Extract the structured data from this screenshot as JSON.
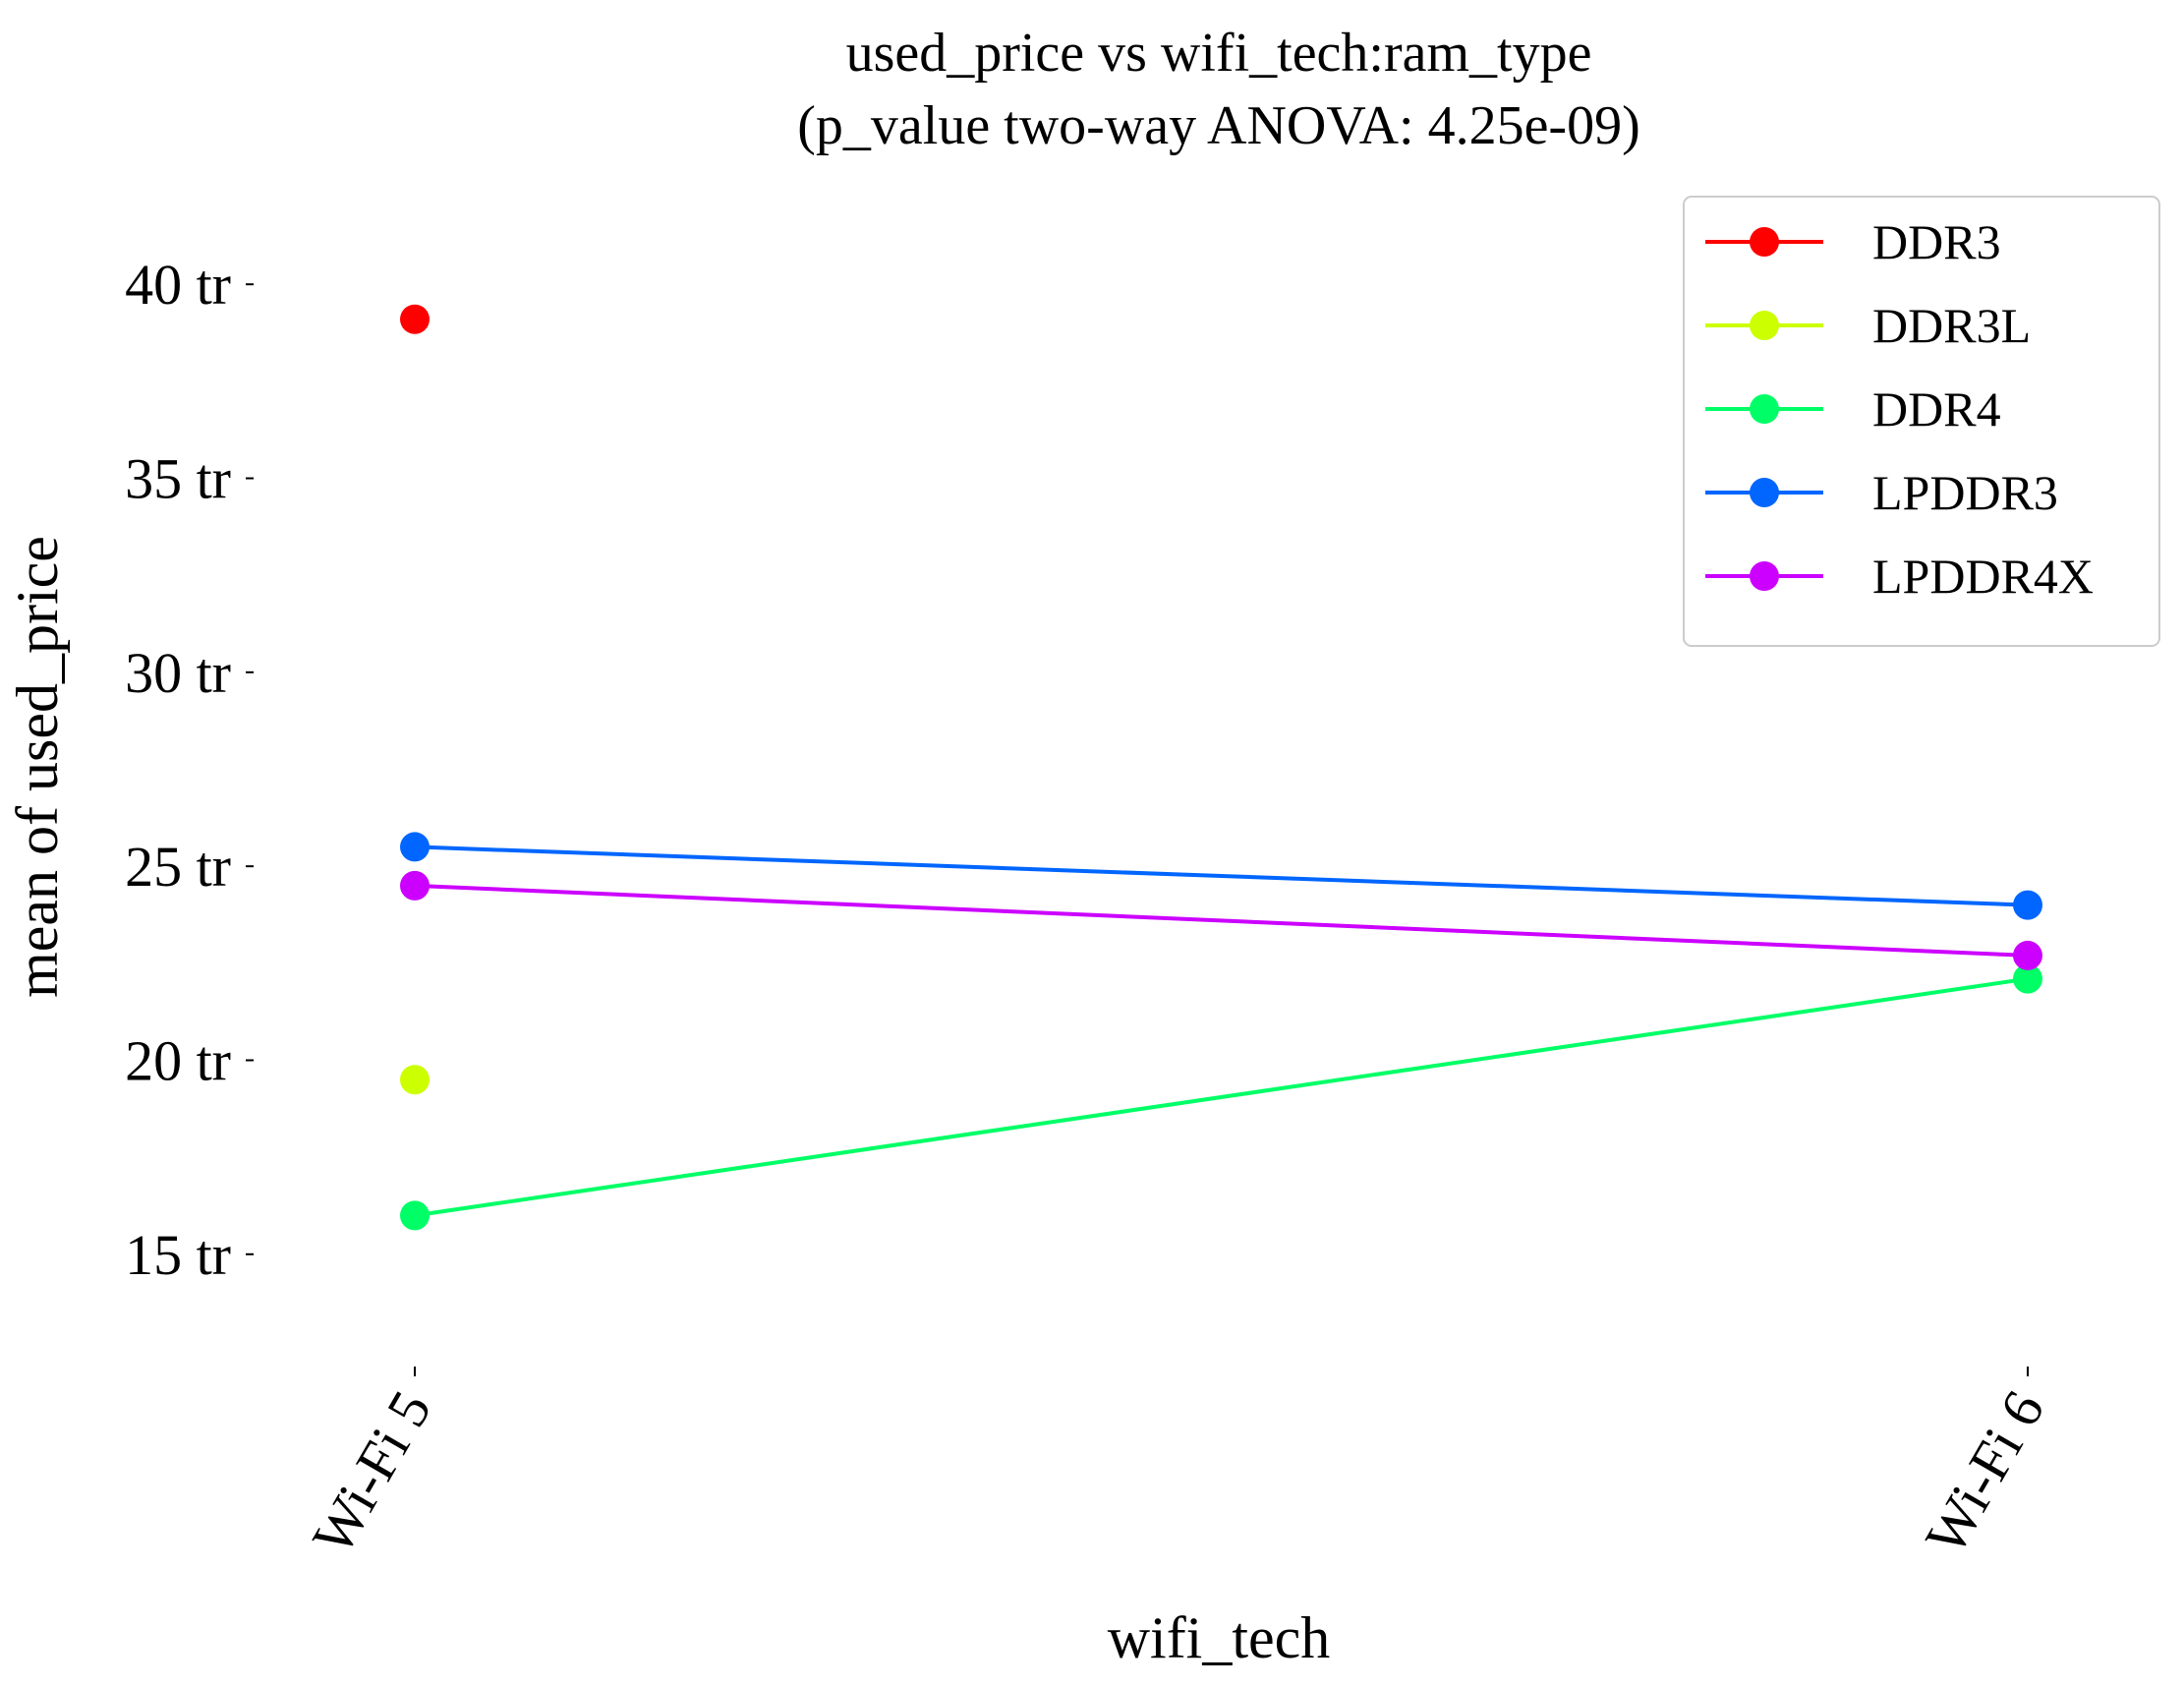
{
  "chart_data": {
    "type": "line",
    "title": "used_price vs wifi_tech:ram_type",
    "subtitle": "(p_value two-way ANOVA: 4.25e-09)",
    "xlabel": "wifi_tech",
    "ylabel": "mean of used_price",
    "categories": [
      "Wi-Fi 5",
      "Wi-Fi 6"
    ],
    "ylim": [
      13.5,
      41.5
    ],
    "yticks": [
      15,
      20,
      25,
      30,
      35,
      40
    ],
    "ytick_suffix": " tr",
    "grid": false,
    "legend_position": "top-right",
    "series": [
      {
        "name": "DDR3",
        "color": "#ff0000",
        "values": [
          39.1,
          null
        ]
      },
      {
        "name": "DDR3L",
        "color": "#ccff00",
        "values": [
          19.5,
          null
        ]
      },
      {
        "name": "DDR4",
        "color": "#00ff66",
        "values": [
          16.0,
          22.1
        ]
      },
      {
        "name": "LPDDR3",
        "color": "#0066ff",
        "values": [
          25.5,
          24.0
        ]
      },
      {
        "name": "LPDDR4X",
        "color": "#cc00ff",
        "values": [
          24.5,
          22.7
        ]
      }
    ]
  }
}
